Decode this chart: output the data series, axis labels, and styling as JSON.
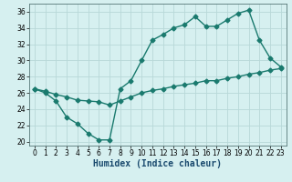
{
  "title": "",
  "xlabel": "Humidex (Indice chaleur)",
  "background_color": "#d6f0f0",
  "grid_color": "#b8d8d8",
  "line_color": "#1a7a6e",
  "xlim": [
    -0.5,
    23.5
  ],
  "ylim": [
    19.5,
    37
  ],
  "yticks": [
    20,
    22,
    24,
    26,
    28,
    30,
    32,
    34,
    36
  ],
  "xticks": [
    0,
    1,
    2,
    3,
    4,
    5,
    6,
    7,
    8,
    9,
    10,
    11,
    12,
    13,
    14,
    15,
    16,
    17,
    18,
    19,
    20,
    21,
    22,
    23
  ],
  "series1_x": [
    0,
    1,
    2,
    3,
    4,
    5,
    6,
    7,
    8,
    9,
    10,
    11,
    12,
    13,
    14,
    15,
    16,
    17,
    18,
    19,
    20,
    21,
    22,
    23
  ],
  "series1_y": [
    26.5,
    26.0,
    25.0,
    23.0,
    22.2,
    21.0,
    20.2,
    20.2,
    26.5,
    27.5,
    30.0,
    32.5,
    33.2,
    34.0,
    34.4,
    35.4,
    34.2,
    34.2,
    35.0,
    35.8,
    36.2,
    32.5,
    30.3,
    29.2
  ],
  "series2_x": [
    0,
    1,
    2,
    3,
    4,
    5,
    6,
    7,
    8,
    9,
    10,
    11,
    12,
    13,
    14,
    15,
    16,
    17,
    18,
    19,
    20,
    21,
    22,
    23
  ],
  "series2_y": [
    26.5,
    26.2,
    25.8,
    25.5,
    25.1,
    25.0,
    24.9,
    24.5,
    25.0,
    25.5,
    26.0,
    26.3,
    26.5,
    26.8,
    27.0,
    27.2,
    27.5,
    27.5,
    27.8,
    28.0,
    28.3,
    28.5,
    28.8,
    29.0
  ],
  "marker": "D",
  "markersize": 2.5,
  "linewidth": 1.0,
  "xlabel_fontsize": 7,
  "tick_fontsize": 5.5
}
